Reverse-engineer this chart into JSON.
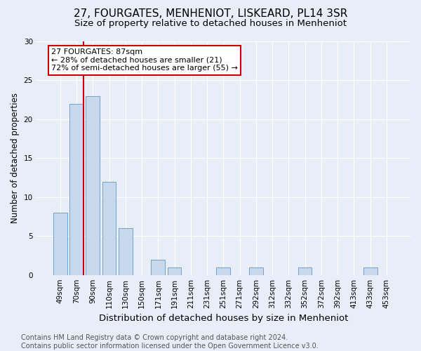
{
  "title": "27, FOURGATES, MENHENIOT, LISKEARD, PL14 3SR",
  "subtitle": "Size of property relative to detached houses in Menheniot",
  "xlabel": "Distribution of detached houses by size in Menheniot",
  "ylabel": "Number of detached properties",
  "categories": [
    "49sqm",
    "70sqm",
    "90sqm",
    "110sqm",
    "130sqm",
    "150sqm",
    "171sqm",
    "191sqm",
    "211sqm",
    "231sqm",
    "251sqm",
    "271sqm",
    "292sqm",
    "312sqm",
    "332sqm",
    "352sqm",
    "372sqm",
    "392sqm",
    "413sqm",
    "433sqm",
    "453sqm"
  ],
  "values": [
    8,
    22,
    23,
    12,
    6,
    0,
    2,
    1,
    0,
    0,
    1,
    0,
    1,
    0,
    0,
    1,
    0,
    0,
    0,
    1,
    0
  ],
  "bar_color": "#c8d9ee",
  "bar_edge_color": "#6fa0cc",
  "vline_color": "#cc0000",
  "annotation_text": "27 FOURGATES: 87sqm\n← 28% of detached houses are smaller (21)\n72% of semi-detached houses are larger (55) →",
  "annotation_box_facecolor": "#ffffff",
  "annotation_box_edgecolor": "#cc0000",
  "ylim": [
    0,
    30
  ],
  "yticks": [
    0,
    5,
    10,
    15,
    20,
    25,
    30
  ],
  "footer_text": "Contains HM Land Registry data © Crown copyright and database right 2024.\nContains public sector information licensed under the Open Government Licence v3.0.",
  "background_color": "#e8eef8",
  "plot_background_color": "#e8eef8",
  "grid_color": "#ffffff",
  "title_fontsize": 11,
  "subtitle_fontsize": 9.5,
  "xlabel_fontsize": 9.5,
  "ylabel_fontsize": 8.5,
  "tick_fontsize": 7.5,
  "annotation_fontsize": 8,
  "footer_fontsize": 7
}
